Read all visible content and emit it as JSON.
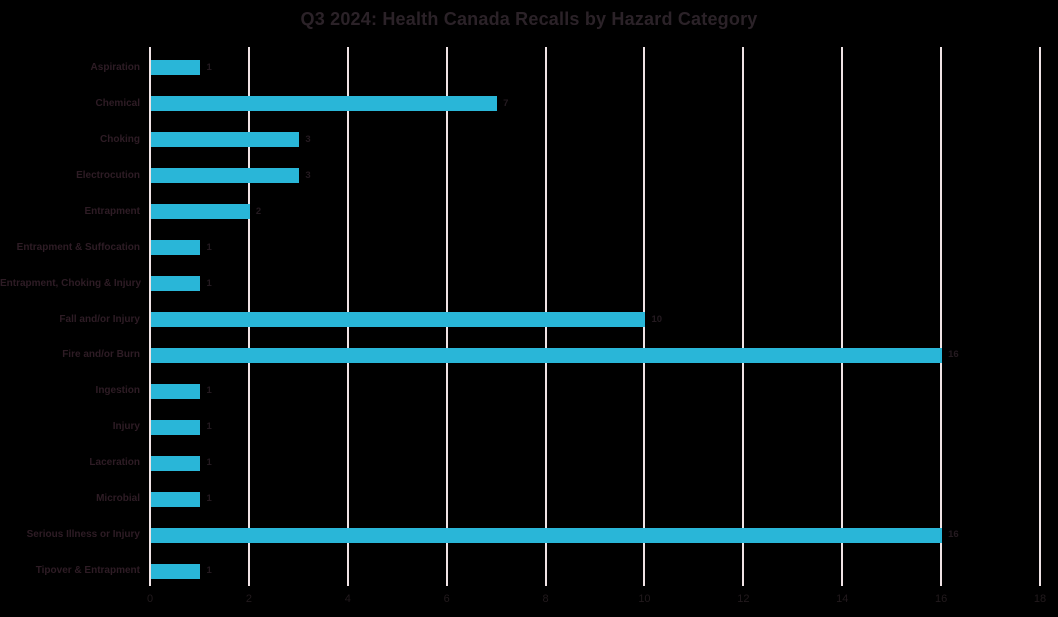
{
  "title": "Q3 2024: Health Canada Recalls by Hazard Category",
  "colors": {
    "background": "#000000",
    "bar": "#29B6D8",
    "gridline": "#EFE3E5",
    "title_text": "#2B2228",
    "category_text": "#2E1C25",
    "value_text": "#241A20",
    "tick_text": "#221A1D"
  },
  "chart_data": {
    "type": "bar",
    "orientation": "horizontal",
    "title": "Q3 2024: Health Canada Recalls by Hazard Category",
    "categories": [
      "Aspiration",
      "Chemical",
      "Choking",
      "Electrocution",
      "Entrapment",
      "Entrapment & Suffocation",
      "Entrapment, Choking & Injury",
      "Fall and/or Injury",
      "Fire and/or Burn",
      "Ingestion",
      "Injury",
      "Laceration",
      "Microbial",
      "Serious Illness or Injury",
      "Tipover & Entrapment"
    ],
    "values": [
      1,
      7,
      3,
      3,
      2,
      1,
      1,
      10,
      16,
      1,
      1,
      1,
      1,
      16,
      1
    ],
    "data_labels": [
      1,
      7,
      3,
      3,
      2,
      1,
      1,
      10,
      16,
      1,
      1,
      1,
      1,
      16,
      1
    ],
    "xlabel": "",
    "ylabel": "",
    "xlim": [
      0,
      18
    ],
    "xticks": [
      0,
      2,
      4,
      6,
      8,
      10,
      12,
      14,
      16,
      18
    ],
    "grid": "vertical",
    "legend": "none"
  }
}
